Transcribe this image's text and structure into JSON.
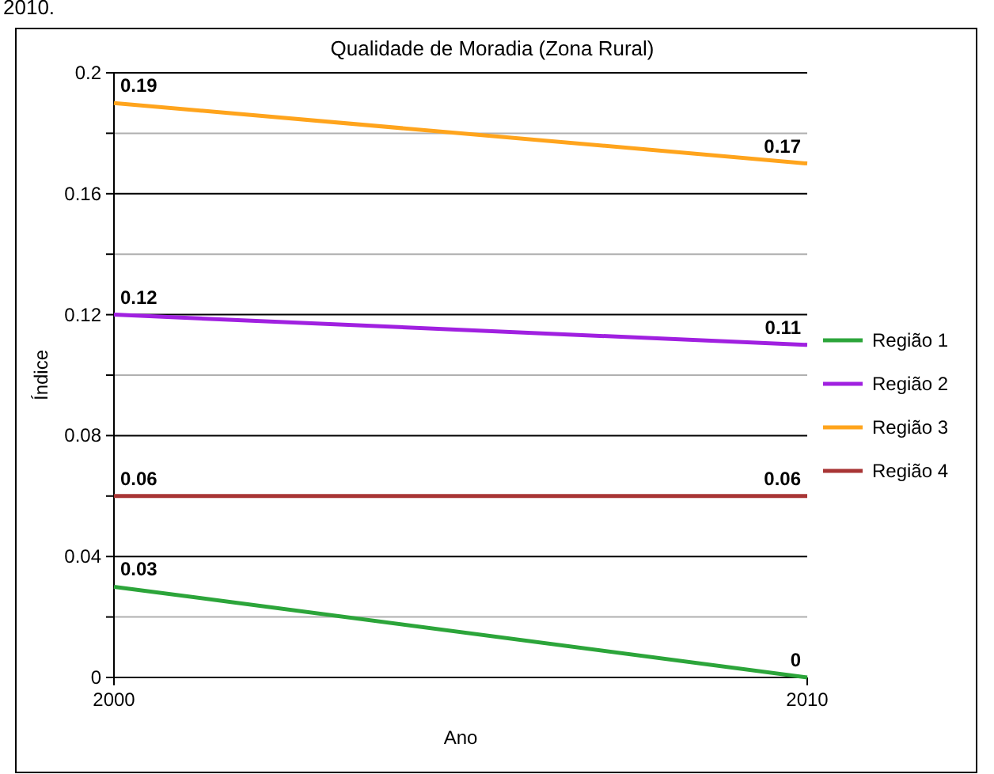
{
  "chart_data": {
    "type": "line",
    "title": "Qualidade de Moradia (Zona Rural)",
    "xlabel": "Ano",
    "ylabel": "Índice",
    "annotations": [
      "2010."
    ],
    "x": [
      2000,
      2010
    ],
    "xlim": [
      2000,
      2010
    ],
    "xticks": [
      2000,
      2010
    ],
    "ylim": [
      0,
      0.2
    ],
    "yticks": [
      0,
      {
        "value": 0.02,
        "label": null
      },
      0.04,
      {
        "value": 0.06,
        "label": null
      },
      0.08,
      {
        "value": 0.1,
        "label": null
      },
      0.12,
      {
        "value": 0.14,
        "label": null
      },
      0.16,
      {
        "value": 0.18,
        "label": null
      },
      0.2
    ],
    "grid": true,
    "legend": "right",
    "data_labels": true,
    "marker": "none",
    "line_style": "solid",
    "series": [
      {
        "name": "Região 1",
        "color": "#2ca53a",
        "values": [
          0.03,
          0
        ]
      },
      {
        "name": "Região 2",
        "color": "#a020e0",
        "values": [
          0.12,
          0.11
        ]
      },
      {
        "name": "Região 3",
        "color": "#ffa41c",
        "values": [
          0.19,
          0.17
        ]
      },
      {
        "name": "Região 4",
        "color": "#a83535",
        "values": [
          0.06,
          0.06
        ]
      }
    ]
  }
}
